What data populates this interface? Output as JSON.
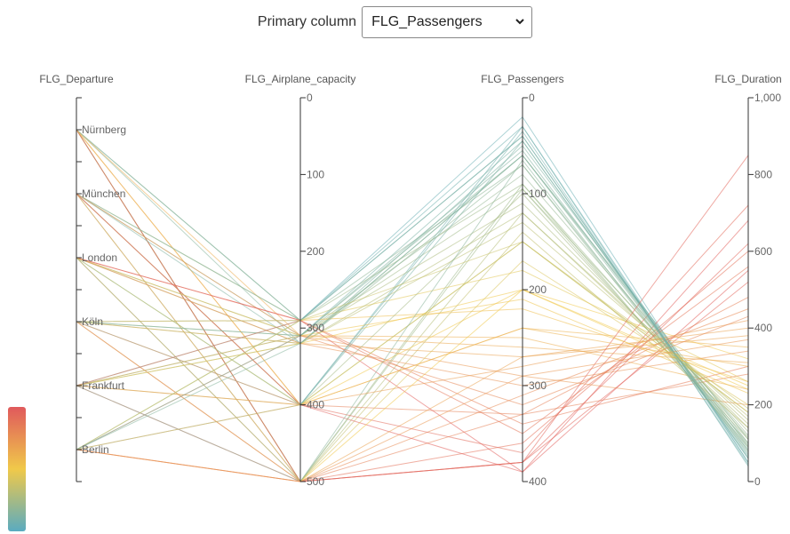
{
  "controls": {
    "label": "Primary column",
    "selected": "FLG_Passengers",
    "chevron_icon": "chevron-down-icon"
  },
  "chart_data": {
    "type": "parallel-coordinates",
    "color_by": "FLG_Passengers",
    "colorscale": [
      "#5aabc0",
      "#f0c94a",
      "#e0595c"
    ],
    "axes": [
      {
        "name": "FLG_Departure",
        "kind": "categorical",
        "categories": [
          "Nürnberg",
          "München",
          "London",
          "Köln",
          "Frankfurt",
          "Berlin"
        ]
      },
      {
        "name": "FLG_Airplane_capacity",
        "kind": "numeric",
        "domain": [
          0,
          500
        ],
        "inverted": true,
        "ticks": [
          0,
          100,
          200,
          300,
          400,
          500
        ],
        "tick_labels": [
          "0",
          "100",
          "200",
          "300",
          "400",
          "500"
        ]
      },
      {
        "name": "FLG_Passengers",
        "kind": "numeric",
        "domain": [
          0,
          400
        ],
        "inverted": true,
        "ticks": [
          0,
          100,
          200,
          300,
          400
        ],
        "tick_labels": [
          "0",
          "100",
          "200",
          "300",
          "400"
        ]
      },
      {
        "name": "FLG_Duration",
        "kind": "numeric",
        "domain": [
          0,
          1000
        ],
        "inverted": false,
        "ticks": [
          0,
          200,
          400,
          600,
          800,
          1000
        ],
        "tick_labels": [
          "0",
          "200",
          "400",
          "600",
          "800",
          "1,000"
        ]
      }
    ],
    "records": [
      [
        "Nürnberg",
        320,
        60,
        110
      ],
      [
        "Nürnberg",
        500,
        120,
        150
      ],
      [
        "Nürnberg",
        400,
        330,
        280
      ],
      [
        "Nürnberg",
        500,
        380,
        520
      ],
      [
        "Nürnberg",
        290,
        40,
        60
      ],
      [
        "Nürnberg",
        310,
        250,
        240
      ],
      [
        "Nürnberg",
        500,
        95,
        100
      ],
      [
        "Nürnberg",
        400,
        200,
        320
      ],
      [
        "Nürnberg",
        290,
        70,
        80
      ],
      [
        "Nürnberg",
        500,
        360,
        600
      ],
      [
        "München",
        320,
        50,
        90
      ],
      [
        "München",
        400,
        30,
        40
      ],
      [
        "München",
        290,
        180,
        260
      ],
      [
        "München",
        500,
        310,
        450
      ],
      [
        "München",
        310,
        80,
        120
      ],
      [
        "München",
        400,
        240,
        350
      ],
      [
        "München",
        500,
        140,
        140
      ],
      [
        "München",
        290,
        20,
        50
      ],
      [
        "München",
        310,
        290,
        200
      ],
      [
        "München",
        400,
        390,
        680
      ],
      [
        "London",
        310,
        60,
        100
      ],
      [
        "London",
        290,
        340,
        300
      ],
      [
        "London",
        320,
        120,
        160
      ],
      [
        "London",
        500,
        270,
        400
      ],
      [
        "London",
        400,
        45,
        70
      ],
      [
        "London",
        310,
        210,
        230
      ],
      [
        "London",
        290,
        390,
        550
      ],
      [
        "London",
        500,
        90,
        90
      ],
      [
        "London",
        320,
        300,
        340
      ],
      [
        "London",
        400,
        150,
        180
      ],
      [
        "Köln",
        290,
        30,
        50
      ],
      [
        "Köln",
        320,
        270,
        380
      ],
      [
        "Köln",
        310,
        95,
        130
      ],
      [
        "Köln",
        500,
        170,
        200
      ],
      [
        "Köln",
        400,
        370,
        720
      ],
      [
        "Köln",
        290,
        220,
        260
      ],
      [
        "Köln",
        310,
        55,
        80
      ],
      [
        "Köln",
        320,
        130,
        170
      ],
      [
        "Köln",
        500,
        330,
        480
      ],
      [
        "Köln",
        400,
        100,
        110
      ],
      [
        "Frankfurt",
        320,
        70,
        95
      ],
      [
        "Frankfurt",
        310,
        260,
        310
      ],
      [
        "Frankfurt",
        290,
        40,
        60
      ],
      [
        "Frankfurt",
        500,
        380,
        620
      ],
      [
        "Frankfurt",
        400,
        150,
        180
      ],
      [
        "Frankfurt",
        320,
        200,
        250
      ],
      [
        "Frankfurt",
        310,
        110,
        140
      ],
      [
        "Frankfurt",
        290,
        350,
        560
      ],
      [
        "Frankfurt",
        500,
        65,
        75
      ],
      [
        "Frankfurt",
        400,
        280,
        420
      ],
      [
        "Berlin",
        400,
        35,
        45
      ],
      [
        "Berlin",
        500,
        200,
        240
      ],
      [
        "Berlin",
        290,
        90,
        115
      ],
      [
        "Berlin",
        310,
        320,
        430
      ],
      [
        "Berlin",
        500,
        380,
        850
      ],
      [
        "Berlin",
        320,
        60,
        85
      ],
      [
        "Berlin",
        400,
        240,
        300
      ],
      [
        "Berlin",
        290,
        150,
        190
      ],
      [
        "Berlin",
        500,
        290,
        370
      ],
      [
        "Berlin",
        310,
        45,
        65
      ]
    ]
  }
}
